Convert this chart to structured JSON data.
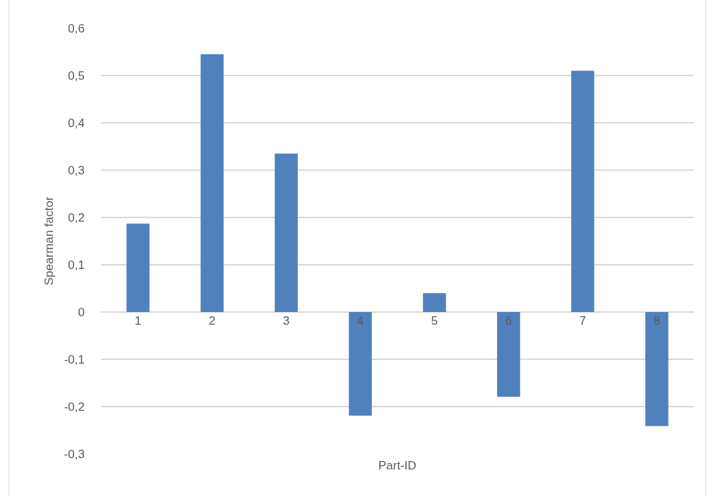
{
  "chart_data": {
    "type": "bar",
    "xlabel": "Part-ID",
    "ylabel": "Spearman factor",
    "categories": [
      "1",
      "2",
      "3",
      "4",
      "5",
      "6",
      "7",
      "8"
    ],
    "values": [
      0.187,
      0.545,
      0.335,
      -0.219,
      0.04,
      -0.179,
      0.51,
      -0.241
    ],
    "color": "#4f81bd",
    "ylim": [
      -0.3,
      0.6
    ],
    "yticks": [
      {
        "value": -0.3,
        "label": "-0,3"
      },
      {
        "value": -0.2,
        "label": "-0,2"
      },
      {
        "value": -0.1,
        "label": "-0,1"
      },
      0,
      {
        "value": 0.1,
        "label": "0,1"
      },
      {
        "value": 0.2,
        "label": "0,2"
      },
      {
        "value": 0.3,
        "label": "0,3"
      },
      {
        "value": 0.4,
        "label": "0,4"
      },
      {
        "value": 0.5,
        "label": "0,5"
      },
      {
        "value": 0.6,
        "label": "0,6"
      }
    ],
    "grid": "y"
  }
}
